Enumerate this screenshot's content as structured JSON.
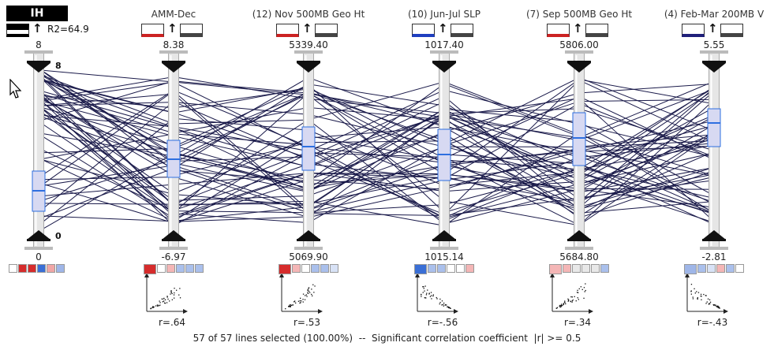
{
  "target": {
    "label": "IH",
    "r2": "R2=64.9",
    "max": "8",
    "min": "0",
    "inner_max": "8",
    "inner_min": "0"
  },
  "axes": [
    {
      "name": "",
      "top": "8",
      "bottom": "0",
      "r": "",
      "legend_color": "#000000"
    },
    {
      "name": "AMM-Dec",
      "top": "8.38",
      "bottom": "-6.97",
      "r": "r=.64",
      "legend_color": "#cc2222"
    },
    {
      "name": "(12) Nov 500MB Geo Ht",
      "top": "5339.40",
      "bottom": "5069.90",
      "r": "r=.53",
      "legend_color": "#cc2222"
    },
    {
      "name": "(10) Jun-Jul SLP",
      "top": "1017.40",
      "bottom": "1015.14",
      "r": "r=-.56",
      "legend_color": "#1f3fc0"
    },
    {
      "name": "(7) Sep 500MB Geo Ht",
      "top": "5806.00",
      "bottom": "5684.80",
      "r": "r=.34",
      "legend_color": "#cc2222"
    },
    {
      "name": "(4) Feb-Mar 200MB V",
      "top": "5.55",
      "bottom": "-2.81",
      "r": "r=-.43",
      "legend_color": "#1f1f7a"
    }
  ],
  "status": "57 of 57 lines selected (100.00%)  --  Significant correlation coefficient  |r| >= 0.5",
  "colors": {
    "line": "#1a1a4a",
    "axis_gray": "#c8c8c8",
    "box_fill": "#d7d9f2",
    "box_stroke": "#2e6fe0",
    "accent_red": "#cc2222",
    "accent_blue": "#2e6fe0"
  },
  "swatches": [
    [
      "#ffffff",
      "#d62c2c",
      "#d62c2c",
      "#3a6fd6",
      "#f0a6a6",
      "#9fb6e8"
    ],
    [
      "#d62c2c",
      "#ffffff",
      "#f4b6b6",
      "#aac0ec",
      "#aac0ec",
      "#aac0ec"
    ],
    [
      "#d62c2c",
      "#f4b6b6",
      "#ffffff",
      "#aac0ec",
      "#aac0ec",
      "#d8e2f6"
    ],
    [
      "#3a6fd6",
      "#aac0ec",
      "#aac0ec",
      "#ffffff",
      "#ffffff",
      "#f4b6b6"
    ],
    [
      "#f4b6b6",
      "#f4b6b6",
      "#e8e8e8",
      "#e8e8e8",
      "#e8e8e8",
      "#aac0ec"
    ],
    [
      "#9fb6e8",
      "#aac0ec",
      "#d8e2f6",
      "#f4b6b6",
      "#aac0ec",
      "#ffffff"
    ]
  ],
  "icons": {
    "cursor": "arrow-pointer-icon",
    "up_arrow": "up-arrow-icon",
    "axis_top_handle": "triangle-down-icon",
    "axis_bottom_handle": "triangle-up-icon"
  }
}
